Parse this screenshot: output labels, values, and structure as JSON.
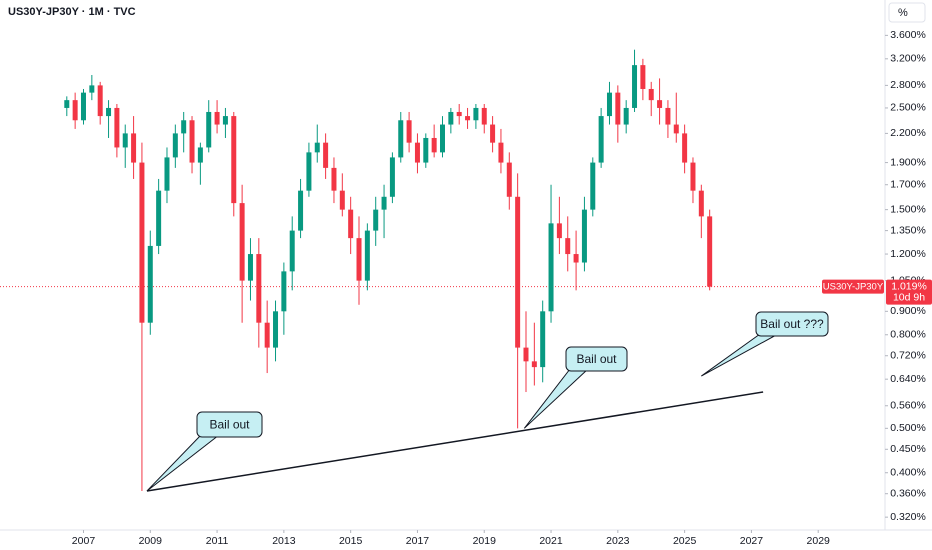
{
  "chart_data": {
    "type": "candlestick",
    "title": "US30Y-JP30Y · 1M · TVC",
    "scale_button": "%",
    "log_scale": true,
    "grid": false,
    "up_color": "#089981",
    "down_color": "#f23645",
    "x": [
      2006.5,
      2006.75,
      2007.0,
      2007.25,
      2007.5,
      2007.75,
      2008.0,
      2008.25,
      2008.5,
      2008.75,
      2009.0,
      2009.25,
      2009.5,
      2009.75,
      2010.0,
      2010.25,
      2010.5,
      2010.75,
      2011.0,
      2011.25,
      2011.5,
      2011.75,
      2012.0,
      2012.25,
      2012.5,
      2012.75,
      2013.0,
      2013.25,
      2013.5,
      2013.75,
      2014.0,
      2014.25,
      2014.5,
      2014.75,
      2015.0,
      2015.25,
      2015.5,
      2015.75,
      2016.0,
      2016.25,
      2016.5,
      2016.75,
      2017.0,
      2017.25,
      2017.5,
      2017.75,
      2018.0,
      2018.25,
      2018.5,
      2018.75,
      2019.0,
      2019.25,
      2019.5,
      2019.75,
      2020.0,
      2020.25,
      2020.5,
      2020.75,
      2021.0,
      2021.25,
      2021.5,
      2021.75,
      2022.0,
      2022.25,
      2022.5,
      2022.75,
      2023.0,
      2023.25,
      2023.5,
      2023.75,
      2024.0,
      2024.25,
      2024.5,
      2024.75,
      2025.0,
      2025.25,
      2025.5,
      2025.75
    ],
    "open": [
      2.5,
      2.6,
      2.35,
      2.7,
      2.8,
      2.4,
      2.5,
      2.05,
      2.2,
      1.9,
      0.85,
      1.25,
      1.65,
      1.95,
      2.2,
      2.35,
      1.9,
      2.05,
      2.45,
      2.3,
      2.4,
      1.55,
      1.05,
      1.2,
      0.85,
      0.75,
      0.9,
      1.1,
      1.35,
      1.65,
      2.0,
      2.1,
      1.85,
      1.65,
      1.5,
      1.3,
      1.05,
      1.35,
      1.5,
      1.6,
      1.95,
      2.35,
      2.1,
      1.9,
      2.15,
      2.0,
      2.3,
      2.45,
      2.4,
      2.35,
      2.5,
      2.3,
      2.1,
      1.9,
      1.6,
      0.75,
      0.7,
      0.68,
      0.9,
      1.4,
      1.3,
      1.2,
      1.15,
      1.5,
      1.9,
      2.4,
      2.7,
      2.3,
      2.5,
      3.1,
      2.75,
      2.6,
      2.5,
      2.3,
      2.2,
      1.9,
      1.65,
      1.45
    ],
    "high": [
      2.65,
      2.7,
      2.75,
      2.95,
      2.85,
      2.6,
      2.55,
      2.3,
      2.4,
      2.1,
      1.35,
      1.75,
      2.05,
      2.3,
      2.45,
      2.4,
      2.1,
      2.6,
      2.6,
      2.5,
      2.45,
      1.7,
      1.3,
      1.3,
      0.95,
      0.95,
      1.15,
      1.45,
      1.75,
      2.1,
      2.3,
      2.2,
      1.95,
      1.8,
      1.6,
      1.45,
      1.4,
      1.6,
      1.7,
      2.0,
      2.45,
      2.45,
      2.2,
      2.2,
      2.3,
      2.4,
      2.5,
      2.55,
      2.5,
      2.55,
      2.55,
      2.4,
      2.25,
      2.0,
      1.8,
      0.9,
      0.85,
      0.95,
      1.7,
      1.6,
      1.45,
      1.35,
      1.6,
      1.95,
      2.5,
      2.85,
      2.8,
      2.6,
      3.35,
      3.2,
      2.85,
      2.9,
      2.6,
      2.7,
      2.3,
      1.95,
      1.7,
      1.5
    ],
    "low": [
      2.4,
      2.25,
      2.3,
      2.6,
      2.3,
      2.15,
      1.95,
      1.85,
      1.75,
      0.365,
      0.8,
      1.2,
      1.55,
      1.85,
      2.0,
      1.8,
      1.7,
      2.0,
      2.2,
      2.15,
      1.45,
      0.85,
      0.95,
      0.75,
      0.66,
      0.7,
      0.8,
      1.0,
      1.3,
      1.6,
      1.9,
      1.75,
      1.55,
      1.45,
      1.2,
      0.93,
      1.0,
      1.25,
      1.3,
      1.55,
      1.9,
      2.0,
      1.8,
      1.85,
      1.95,
      1.95,
      2.2,
      2.3,
      2.25,
      2.25,
      2.2,
      2.0,
      1.8,
      1.5,
      0.5,
      0.6,
      0.62,
      0.63,
      0.85,
      1.2,
      1.1,
      1.0,
      1.1,
      1.45,
      1.85,
      2.3,
      2.1,
      2.2,
      2.45,
      2.6,
      2.4,
      2.3,
      2.15,
      2.1,
      1.8,
      1.55,
      1.3,
      1.0
    ],
    "close": [
      2.6,
      2.35,
      2.7,
      2.8,
      2.4,
      2.5,
      2.05,
      2.2,
      1.9,
      0.85,
      1.25,
      1.65,
      1.95,
      2.2,
      2.35,
      1.9,
      2.05,
      2.45,
      2.3,
      2.4,
      1.55,
      1.05,
      1.2,
      0.85,
      0.75,
      0.9,
      1.1,
      1.35,
      1.65,
      2.0,
      2.1,
      1.85,
      1.65,
      1.5,
      1.3,
      1.05,
      1.35,
      1.5,
      1.6,
      1.95,
      2.35,
      2.1,
      1.9,
      2.15,
      2.0,
      2.3,
      2.45,
      2.4,
      2.35,
      2.5,
      2.3,
      2.1,
      1.9,
      1.6,
      0.75,
      0.7,
      0.68,
      0.9,
      1.4,
      1.3,
      1.2,
      1.15,
      1.5,
      1.9,
      2.4,
      2.7,
      2.3,
      2.5,
      3.1,
      2.75,
      2.6,
      2.5,
      2.3,
      2.2,
      1.9,
      1.65,
      1.45,
      1.019
    ],
    "xlim": [
      2004.5,
      2031
    ],
    "ylim": [
      0.3,
      4.3
    ],
    "xticks": [
      2007,
      2009,
      2011,
      2013,
      2015,
      2017,
      2019,
      2021,
      2023,
      2025,
      2027,
      2029
    ],
    "yticks": [
      {
        "value": 3.6,
        "label": "3.600%"
      },
      {
        "value": 3.2,
        "label": "3.200%"
      },
      {
        "value": 2.8,
        "label": "2.800%"
      },
      {
        "value": 2.5,
        "label": "2.500%"
      },
      {
        "value": 2.2,
        "label": "2.200%"
      },
      {
        "value": 1.9,
        "label": "1.900%"
      },
      {
        "value": 1.7,
        "label": "1.700%"
      },
      {
        "value": 1.5,
        "label": "1.500%"
      },
      {
        "value": 1.35,
        "label": "1.350%"
      },
      {
        "value": 1.2,
        "label": "1.200%"
      },
      {
        "value": 1.05,
        "label": "1.050%"
      },
      {
        "value": 0.9,
        "label": "0.900%"
      },
      {
        "value": 0.8,
        "label": "0.800%"
      },
      {
        "value": 0.72,
        "label": "0.720%"
      },
      {
        "value": 0.64,
        "label": "0.640%"
      },
      {
        "value": 0.56,
        "label": "0.560%"
      },
      {
        "value": 0.5,
        "label": "0.500%"
      },
      {
        "value": 0.45,
        "label": "0.450%"
      },
      {
        "value": 0.4,
        "label": "0.400%"
      },
      {
        "value": 0.36,
        "label": "0.360%"
      },
      {
        "value": 0.32,
        "label": "0.320%"
      }
    ],
    "last_price": {
      "value": 1.019,
      "label": "1.019%",
      "symbol": "US30Y-JP30Y",
      "countdown": "10d 9h"
    },
    "trendline": {
      "x": [
        2008.9,
        2027.35
      ],
      "y": [
        0.365,
        0.6
      ]
    },
    "annotations": [
      {
        "text": "Bail out",
        "x": 2008.9,
        "y": 0.365
      },
      {
        "text": "Bail out",
        "x": 2020.2,
        "y": 0.5
      },
      {
        "text": "Bail out ???",
        "x": 2025.5,
        "y": 0.65
      }
    ]
  }
}
